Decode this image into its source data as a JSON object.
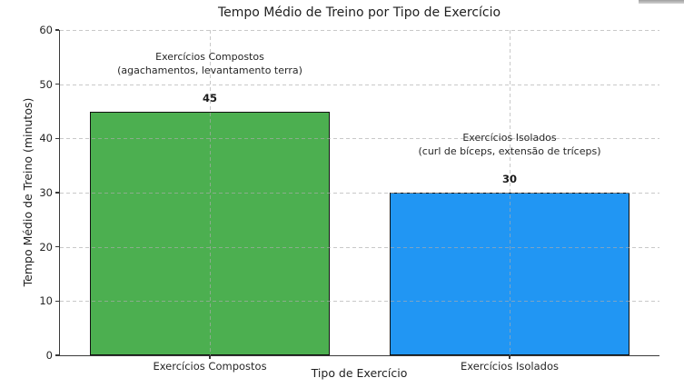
{
  "chart_data": {
    "type": "bar",
    "title": "Tempo Médio de Treino por Tipo de Exercício",
    "xlabel": "Tipo de Exercício",
    "ylabel": "Tempo Médio de Treino (minutos)",
    "categories": [
      "Exercícios Compostos",
      "Exercícios Isolados"
    ],
    "values": [
      45,
      30
    ],
    "value_labels": [
      "45",
      "30"
    ],
    "bar_colors": [
      "#4caf50",
      "#2196f3"
    ],
    "bar_edge_color": "#111111",
    "annotations": [
      {
        "lines": [
          "Exercícios Compostos",
          "(agachamentos, levantamento terra)"
        ]
      },
      {
        "lines": [
          "Exercícios Isolados",
          "(curl de bíceps, extensão de tríceps)"
        ]
      }
    ],
    "ylim": [
      0,
      60
    ],
    "yticks": [
      0,
      10,
      20,
      30,
      40,
      50,
      60
    ],
    "grid": true,
    "grid_style": "dashed",
    "grid_position": "above-bars",
    "legend": "none",
    "bar_width_fraction": 0.8
  }
}
